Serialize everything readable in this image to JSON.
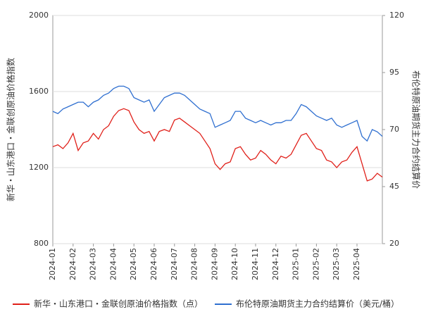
{
  "chart_data": {
    "type": "line",
    "y_label": "新华・山东港口・金联创原油价格指数",
    "y2_label": "布伦特原油期货主力合约结算价",
    "categories": [
      "2024-01",
      null,
      null,
      null,
      "2024-02",
      null,
      null,
      null,
      "2024-03",
      null,
      null,
      null,
      "2024-04",
      null,
      null,
      null,
      "2024-05",
      null,
      null,
      null,
      "2024-06",
      null,
      null,
      null,
      "2024-07",
      null,
      null,
      null,
      "2024-08",
      null,
      null,
      null,
      "2024-09",
      null,
      null,
      null,
      "2024-10",
      null,
      null,
      null,
      "2024-11",
      null,
      null,
      null,
      "2024-12",
      null,
      null,
      null,
      "2025-01",
      null,
      null,
      null,
      "2025-02",
      null,
      null,
      null,
      "2025-03",
      null,
      null,
      null,
      "2025-04",
      null,
      null,
      null,
      null,
      null
    ],
    "series": [
      {
        "name": "新华・山东港口・金联创原油价格指数（点）",
        "color": "#e0201a",
        "axis": "y",
        "values": [
          1310,
          1320,
          1300,
          1330,
          1380,
          1290,
          1330,
          1340,
          1380,
          1350,
          1400,
          1420,
          1470,
          1500,
          1510,
          1500,
          1440,
          1400,
          1380,
          1390,
          1340,
          1390,
          1400,
          1390,
          1450,
          1460,
          1440,
          1420,
          1400,
          1380,
          1340,
          1300,
          1220,
          1190,
          1220,
          1230,
          1300,
          1310,
          1270,
          1240,
          1250,
          1290,
          1270,
          1240,
          1220,
          1260,
          1250,
          1270,
          1320,
          1370,
          1380,
          1340,
          1300,
          1290,
          1240,
          1230,
          1200,
          1230,
          1240,
          1280,
          1310,
          1220,
          1130,
          1140,
          1170,
          1150
        ]
      },
      {
        "name": "布伦特原油期货主力合约结算价（美元/桶）",
        "color": "#2f6fd0",
        "axis": "y2",
        "values": [
          78,
          77,
          79,
          80,
          81,
          82,
          82,
          80,
          82,
          83,
          85,
          86,
          88,
          89,
          89,
          88,
          84,
          83,
          82,
          83,
          78,
          81,
          84,
          85,
          86,
          86,
          85,
          83,
          81,
          79,
          78,
          77,
          71,
          72,
          73,
          74,
          78,
          78,
          75,
          74,
          73,
          74,
          73,
          72,
          73,
          73,
          74,
          74,
          77,
          81,
          80,
          78,
          76,
          75,
          74,
          75,
          72,
          71,
          72,
          73,
          74,
          67,
          65,
          70,
          69,
          67
        ]
      }
    ],
    "ylim": [
      800,
      2000
    ],
    "yticks": [
      800,
      1200,
      1600,
      2000
    ],
    "y2lim": [
      20,
      120
    ],
    "y2ticks": [
      20,
      45,
      70,
      95,
      120
    ],
    "grid": true
  }
}
